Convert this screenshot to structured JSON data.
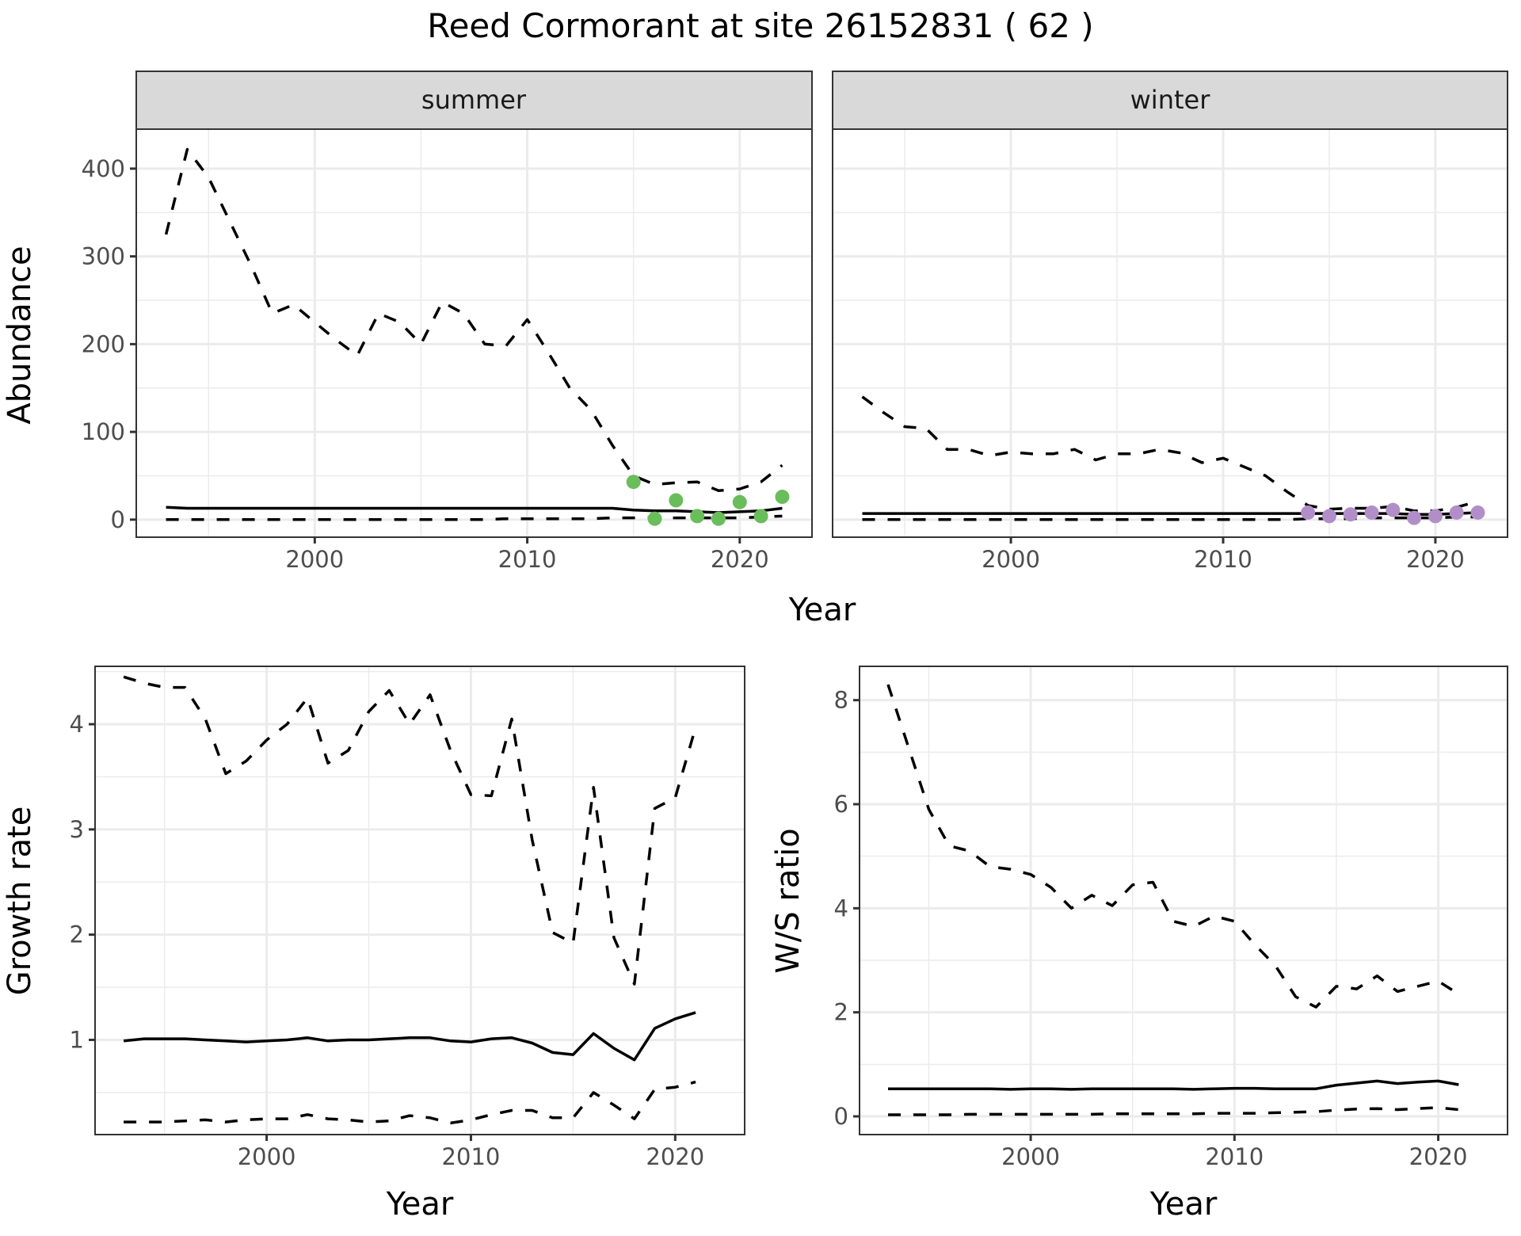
{
  "title": "Reed Cormorant at site 26152831 ( 62 )",
  "colors": {
    "summer_points": "#6abd5b",
    "winter_points": "#b28ec9",
    "line": "#000000",
    "strip_bg": "#d9d9d9",
    "grid": "#ebebeb",
    "panel_border": "#333333"
  },
  "chart_data": [
    {
      "type": "line",
      "panel": "summer",
      "strip_label": "summer",
      "xlabel": "Year",
      "ylabel": "Abundance",
      "xlim": [
        1991.6,
        2023.4
      ],
      "ylim": [
        -20,
        445
      ],
      "xticks": [
        2000,
        2010,
        2020
      ],
      "xtick_labels": [
        "2000",
        "2010",
        "2020"
      ],
      "yticks": [
        0,
        100,
        200,
        300,
        400
      ],
      "ytick_labels": [
        "0",
        "100",
        "200",
        "300",
        "400"
      ],
      "grid": true,
      "x": [
        1993,
        1994,
        1995,
        1996,
        1997,
        1998,
        1999,
        2000,
        2001,
        2002,
        2003,
        2004,
        2005,
        2006,
        2007,
        2008,
        2009,
        2010,
        2011,
        2012,
        2013,
        2014,
        2015,
        2016,
        2017,
        2018,
        2019,
        2020,
        2021,
        2022
      ],
      "series": [
        {
          "name": "mean",
          "style": "solid",
          "values": [
            14,
            13,
            13,
            13,
            13,
            13,
            13,
            13,
            13,
            13,
            13,
            13,
            13,
            13,
            13,
            13,
            13,
            13,
            13,
            13,
            13,
            13,
            11,
            10,
            10,
            9,
            8,
            9,
            10,
            13
          ]
        },
        {
          "name": "upper",
          "style": "dashed",
          "values": [
            325,
            422,
            390,
            340,
            290,
            235,
            245,
            225,
            205,
            187,
            235,
            225,
            200,
            248,
            235,
            200,
            198,
            228,
            190,
            150,
            125,
            85,
            50,
            40,
            42,
            43,
            33,
            35,
            43,
            62
          ]
        },
        {
          "name": "lower",
          "style": "dashed",
          "values": [
            0,
            0,
            0,
            0,
            0,
            0,
            0,
            0,
            0,
            0,
            0,
            0,
            0,
            0,
            0,
            0,
            1,
            1,
            1,
            1,
            1,
            2,
            2,
            2,
            2,
            2,
            2,
            2,
            3,
            4
          ]
        }
      ],
      "points": {
        "name": "observed",
        "x": [
          2015,
          2016,
          2017,
          2018,
          2019,
          2020,
          2021,
          2022
        ],
        "y": [
          43,
          1,
          22,
          4,
          1,
          20,
          4,
          26
        ]
      }
    },
    {
      "type": "line",
      "panel": "winter",
      "strip_label": "winter",
      "xlabel": "Year",
      "ylabel": "Abundance",
      "xlim": [
        1991.6,
        2023.4
      ],
      "ylim": [
        -20,
        445
      ],
      "xticks": [
        2000,
        2010,
        2020
      ],
      "xtick_labels": [
        "2000",
        "2010",
        "2020"
      ],
      "yticks": [
        0,
        100,
        200,
        300,
        400
      ],
      "grid": true,
      "x": [
        1993,
        1994,
        1995,
        1996,
        1997,
        1998,
        1999,
        2000,
        2001,
        2002,
        2003,
        2004,
        2005,
        2006,
        2007,
        2008,
        2009,
        2010,
        2011,
        2012,
        2013,
        2014,
        2015,
        2016,
        2017,
        2018,
        2019,
        2020,
        2021,
        2022
      ],
      "series": [
        {
          "name": "mean",
          "style": "solid",
          "values": [
            7,
            7,
            7,
            7,
            7,
            7,
            7,
            7,
            7,
            7,
            7,
            7,
            7,
            7,
            7,
            7,
            7,
            7,
            7,
            7,
            7,
            7,
            7,
            7,
            7,
            7,
            6,
            6,
            7,
            8
          ]
        },
        {
          "name": "upper",
          "style": "dashed",
          "values": [
            140,
            122,
            106,
            104,
            80,
            80,
            73,
            77,
            75,
            75,
            80,
            68,
            75,
            75,
            80,
            76,
            65,
            70,
            60,
            50,
            32,
            16,
            12,
            13,
            13,
            15,
            10,
            10,
            14,
            21
          ]
        },
        {
          "name": "lower",
          "style": "dashed",
          "values": [
            0,
            0,
            0,
            0,
            0,
            0,
            0,
            0,
            0,
            0,
            0,
            0,
            0,
            0,
            0,
            0,
            0,
            0,
            0,
            0,
            0,
            1,
            1,
            1,
            2,
            2,
            2,
            2,
            3,
            3
          ]
        }
      ],
      "points": {
        "name": "observed",
        "x": [
          2014,
          2015,
          2016,
          2017,
          2018,
          2019,
          2020,
          2021,
          2022
        ],
        "y": [
          8,
          4,
          6,
          8,
          11,
          2,
          4,
          8,
          8
        ]
      }
    },
    {
      "type": "line",
      "panel": "growth",
      "xlabel": "Year",
      "ylabel": "Growth rate",
      "xlim": [
        1991.6,
        2023.4
      ],
      "ylim": [
        0.1,
        4.55
      ],
      "xticks": [
        2000,
        2010,
        2020
      ],
      "xtick_labels": [
        "2000",
        "2010",
        "2020"
      ],
      "yticks": [
        1,
        2,
        3,
        4
      ],
      "ytick_labels": [
        "1",
        "2",
        "3",
        "4"
      ],
      "grid": true,
      "x": [
        1993,
        1994,
        1995,
        1996,
        1997,
        1998,
        1999,
        2000,
        2001,
        2002,
        2003,
        2004,
        2005,
        2006,
        2007,
        2008,
        2009,
        2010,
        2011,
        2012,
        2013,
        2014,
        2015,
        2016,
        2017,
        2018,
        2019,
        2020,
        2021
      ],
      "series": [
        {
          "name": "mean",
          "style": "solid",
          "values": [
            0.99,
            1.01,
            1.01,
            1.01,
            1.0,
            0.99,
            0.98,
            0.99,
            1.0,
            1.02,
            0.99,
            1.0,
            1.0,
            1.01,
            1.02,
            1.02,
            0.99,
            0.98,
            1.01,
            1.02,
            0.97,
            0.88,
            0.86,
            1.06,
            0.92,
            0.81,
            1.11,
            1.2,
            1.26
          ]
        },
        {
          "name": "upper",
          "style": "dashed",
          "values": [
            4.45,
            4.39,
            4.35,
            4.35,
            4.05,
            3.53,
            3.65,
            3.85,
            4.0,
            4.25,
            3.63,
            3.75,
            4.12,
            4.32,
            4.0,
            4.28,
            3.75,
            3.33,
            3.32,
            4.05,
            2.9,
            2.02,
            1.92,
            3.4,
            1.97,
            1.53,
            3.2,
            3.3,
            3.97
          ]
        },
        {
          "name": "lower",
          "style": "dashed",
          "values": [
            0.22,
            0.22,
            0.22,
            0.23,
            0.24,
            0.22,
            0.24,
            0.25,
            0.25,
            0.29,
            0.25,
            0.24,
            0.22,
            0.23,
            0.28,
            0.26,
            0.21,
            0.24,
            0.29,
            0.33,
            0.33,
            0.26,
            0.26,
            0.5,
            0.38,
            0.25,
            0.53,
            0.55,
            0.6
          ]
        }
      ]
    },
    {
      "type": "line",
      "panel": "ws_ratio",
      "xlabel": "Year",
      "ylabel": "W/S ratio",
      "xlim": [
        1991.6,
        2023.4
      ],
      "ylim": [
        -0.35,
        8.65
      ],
      "xticks": [
        2000,
        2010,
        2020
      ],
      "xtick_labels": [
        "2000",
        "2010",
        "2020"
      ],
      "yticks": [
        0,
        2,
        4,
        6,
        8
      ],
      "ytick_labels": [
        "0",
        "2",
        "4",
        "6",
        "8"
      ],
      "grid": true,
      "x": [
        1993,
        1994,
        1995,
        1996,
        1997,
        1998,
        1999,
        2000,
        2001,
        2002,
        2003,
        2004,
        2005,
        2006,
        2007,
        2008,
        2009,
        2010,
        2011,
        2012,
        2013,
        2014,
        2015,
        2016,
        2017,
        2018,
        2019,
        2020,
        2021
      ],
      "series": [
        {
          "name": "mean",
          "style": "solid",
          "values": [
            0.53,
            0.53,
            0.53,
            0.53,
            0.53,
            0.53,
            0.52,
            0.53,
            0.53,
            0.52,
            0.53,
            0.53,
            0.53,
            0.53,
            0.53,
            0.52,
            0.53,
            0.54,
            0.54,
            0.53,
            0.53,
            0.53,
            0.6,
            0.64,
            0.68,
            0.63,
            0.66,
            0.68,
            0.61
          ]
        },
        {
          "name": "upper",
          "style": "dashed",
          "values": [
            8.3,
            7.1,
            5.9,
            5.2,
            5.1,
            4.8,
            4.75,
            4.65,
            4.4,
            4.0,
            4.25,
            4.05,
            4.45,
            4.5,
            3.75,
            3.65,
            3.85,
            3.75,
            3.3,
            2.9,
            2.3,
            2.1,
            2.5,
            2.45,
            2.7,
            2.4,
            2.5,
            2.6,
            2.35
          ]
        },
        {
          "name": "lower",
          "style": "dashed",
          "values": [
            0.03,
            0.03,
            0.03,
            0.03,
            0.04,
            0.04,
            0.04,
            0.04,
            0.04,
            0.04,
            0.04,
            0.05,
            0.05,
            0.05,
            0.05,
            0.05,
            0.06,
            0.06,
            0.06,
            0.07,
            0.08,
            0.09,
            0.12,
            0.14,
            0.15,
            0.13,
            0.15,
            0.17,
            0.13
          ]
        }
      ]
    }
  ]
}
